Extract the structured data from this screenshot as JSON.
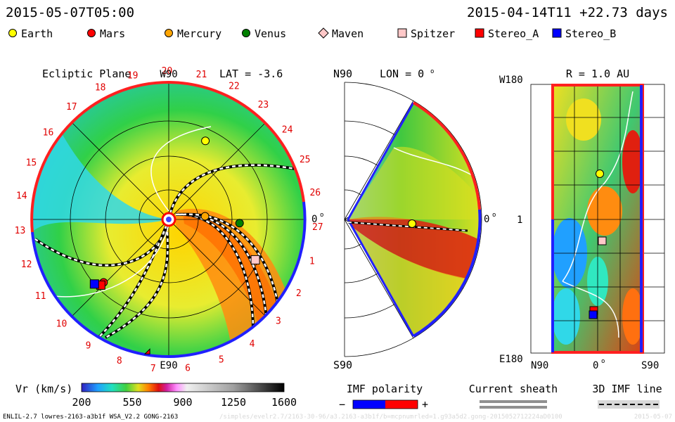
{
  "header": {
    "date_left": "2015-05-07T05:00",
    "date_right": "2015-04-14T11  +22.73 days"
  },
  "legend": [
    {
      "label": "Earth",
      "color": "#ffff00",
      "shape": "circle"
    },
    {
      "label": "Mars",
      "color": "#ff0000",
      "shape": "circle"
    },
    {
      "label": "Mercury",
      "color": "#ffa500",
      "shape": "circle"
    },
    {
      "label": "Venus",
      "color": "#008000",
      "shape": "circle"
    },
    {
      "label": "Maven",
      "color": "#ffc8c8",
      "shape": "diamond"
    },
    {
      "label": "Spitzer",
      "color": "#ffc8c8",
      "shape": "square"
    },
    {
      "label": "Stereo_A",
      "color": "#ff0000",
      "shape": "square"
    },
    {
      "label": "Stereo_B",
      "color": "#0000ff",
      "shape": "square"
    }
  ],
  "chart_data": [
    {
      "type": "heatmap",
      "title": "Ecliptic Plane",
      "lat_label": "LAT = -3.6",
      "top_label": "W90",
      "bottom_label": "E90",
      "right_label": "0",
      "carrington_ticks": [
        "19",
        "20",
        "21",
        "22",
        "23",
        "24",
        "25",
        "26",
        "27",
        "1",
        "2",
        "3",
        "4",
        "5",
        "6",
        "7",
        "8",
        "9",
        "10",
        "11",
        "12",
        "13",
        "14",
        "15",
        "16",
        "17",
        "18"
      ],
      "bodies": [
        {
          "name": "Earth",
          "r_au": 0.88,
          "angle_deg": 65
        },
        {
          "name": "Mercury",
          "r_au": 0.37,
          "angle_deg": 5
        },
        {
          "name": "Venus",
          "r_au": 0.72,
          "angle_deg": -3
        },
        {
          "name": "Mars",
          "r_au": 0.92,
          "angle_deg": -136
        },
        {
          "name": "Maven",
          "r_au": 1.38,
          "angle_deg": -98
        },
        {
          "name": "Spitzer",
          "r_au": 0.97,
          "angle_deg": -25
        },
        {
          "name": "Stereo_A",
          "r_au": 0.96,
          "angle_deg": -136
        },
        {
          "name": "Stereo_B",
          "r_au": 1.0,
          "angle_deg": -139
        }
      ]
    },
    {
      "type": "heatmap",
      "title": "LON = 0",
      "top_label": "N90",
      "bottom_label": "S90",
      "right_label": "0"
    },
    {
      "type": "heatmap",
      "title": "R = 1.0 AU",
      "y_top_label": "W180",
      "y_mid_label": "1",
      "y_bottom_label": "E180",
      "x_labels": [
        "N90",
        "0",
        "S90"
      ]
    }
  ],
  "colorbar": {
    "label": "Vr (km/s)",
    "ticks": [
      "200",
      "550",
      "900",
      "1250",
      "1600"
    ],
    "range": [
      200,
      1600
    ]
  },
  "imf": {
    "title": "IMF polarity",
    "minus": "−",
    "plus": "+",
    "negative_color": "#0000ff",
    "positive_color": "#ff0000"
  },
  "current_sheath": {
    "title": "Current sheath"
  },
  "imf_line": {
    "title": "3D IMF line"
  },
  "footer": {
    "model": "ENLIL-2.7 lowres-2163-a3b1f WSA_V2.2 GONG-2163",
    "watermark": "/simples/evelr2.7/2163-30-96/a3.2163-a3b1f/b=mcpnumrled=1.g93a5d2.gong-2015052712224aD0100",
    "right": "2015-05-07"
  }
}
